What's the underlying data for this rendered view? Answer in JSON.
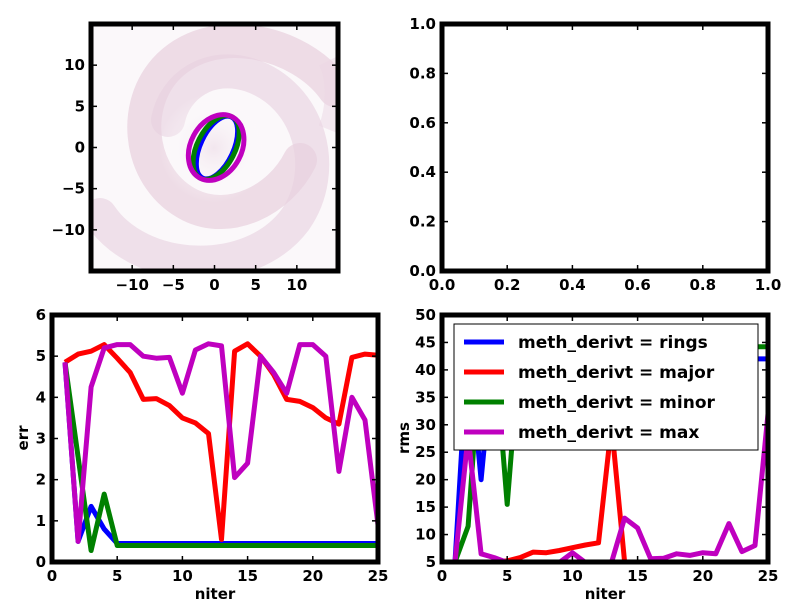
{
  "chart_data": [
    {
      "type": "image",
      "xlim": [
        -15,
        15
      ],
      "ylim": [
        -15,
        15
      ],
      "xticks": [
        -10,
        -5,
        0,
        5,
        10
      ],
      "yticks": [
        -10,
        -5,
        0,
        5,
        10
      ],
      "xtick_labels": [
        "−10",
        "−5",
        "0",
        "5",
        "10"
      ],
      "ytick_labels": [
        "−10",
        "−5",
        "0",
        "5",
        "10"
      ],
      "background": "faint pink spiral galaxy image",
      "ellipses": [
        {
          "color": "#0000ff",
          "cx": 0.3,
          "cy": 0,
          "rx": 2.0,
          "ry": 4.1,
          "angle_deg": 25
        },
        {
          "color": "#008000",
          "cx": 0.2,
          "cy": 0,
          "rx": 2.3,
          "ry": 4.2,
          "angle_deg": 27
        },
        {
          "color": "#bf00bf",
          "cx": 0.2,
          "cy": 0,
          "rx": 3.1,
          "ry": 4.2,
          "angle_deg": 28
        }
      ]
    },
    {
      "type": "line",
      "xlim": [
        0,
        1
      ],
      "ylim": [
        0,
        1
      ],
      "xticks": [
        0.0,
        0.2,
        0.4,
        0.6,
        0.8,
        1.0
      ],
      "yticks": [
        0.0,
        0.2,
        0.4,
        0.6,
        0.8,
        1.0
      ],
      "xtick_labels": [
        "0.0",
        "0.2",
        "0.4",
        "0.6",
        "0.8",
        "1.0"
      ],
      "ytick_labels": [
        "0.0",
        "0.2",
        "0.4",
        "0.6",
        "0.8",
        "1.0"
      ],
      "series": []
    },
    {
      "type": "line",
      "xlabel": "niter",
      "ylabel": "err",
      "xlim": [
        0,
        25
      ],
      "ylim": [
        0,
        6
      ],
      "xticks": [
        0,
        5,
        10,
        15,
        20,
        25
      ],
      "yticks": [
        0,
        1,
        2,
        3,
        4,
        5,
        6
      ],
      "xtick_labels": [
        "0",
        "5",
        "10",
        "15",
        "20",
        "25"
      ],
      "ytick_labels": [
        "0",
        "1",
        "2",
        "3",
        "4",
        "5",
        "6"
      ],
      "x": [
        1,
        2,
        3,
        4,
        5,
        6,
        7,
        8,
        9,
        10,
        11,
        12,
        13,
        14,
        15,
        16,
        17,
        18,
        19,
        20,
        21,
        22,
        23,
        24,
        25
      ],
      "series": [
        {
          "color": "#0000ff",
          "values": [
            4.85,
            0.5,
            1.35,
            0.8,
            0.45,
            0.45,
            0.45,
            0.45,
            0.45,
            0.45,
            0.45,
            0.45,
            0.45,
            0.45,
            0.45,
            0.45,
            0.45,
            0.45,
            0.45,
            0.45,
            0.45,
            0.45,
            0.45,
            0.45,
            0.45
          ]
        },
        {
          "color": "#ff0000",
          "values": [
            4.85,
            5.05,
            5.12,
            5.28,
            4.95,
            4.6,
            3.95,
            3.97,
            3.8,
            3.5,
            3.38,
            3.12,
            0.55,
            5.12,
            5.3,
            5.0,
            4.55,
            3.95,
            3.9,
            3.75,
            3.5,
            3.35,
            4.97,
            5.05,
            5.02
          ]
        },
        {
          "color": "#008000",
          "values": [
            4.85,
            2.55,
            0.28,
            1.65,
            0.4,
            0.4,
            0.4,
            0.4,
            0.4,
            0.4,
            0.4,
            0.4,
            0.4,
            0.4,
            0.4,
            0.4,
            0.4,
            0.4,
            0.4,
            0.4,
            0.4,
            0.4,
            0.4,
            0.4,
            0.4
          ]
        },
        {
          "color": "#bf00bf",
          "values": [
            4.85,
            0.5,
            4.25,
            5.2,
            5.28,
            5.28,
            5.0,
            4.95,
            4.97,
            4.1,
            5.15,
            5.3,
            5.25,
            2.05,
            2.4,
            5.0,
            4.6,
            4.1,
            5.28,
            5.28,
            5.0,
            2.2,
            4.0,
            3.45,
            0.9
          ]
        }
      ]
    },
    {
      "type": "line",
      "xlabel": "niter",
      "ylabel": "rms",
      "xlim": [
        0,
        25
      ],
      "ylim": [
        5,
        50
      ],
      "xticks": [
        0,
        5,
        10,
        15,
        20,
        25
      ],
      "yticks": [
        5,
        10,
        15,
        20,
        25,
        30,
        35,
        40,
        45,
        50
      ],
      "xtick_labels": [
        "0",
        "5",
        "10",
        "15",
        "20",
        "25"
      ],
      "ytick_labels": [
        "5",
        "10",
        "15",
        "20",
        "25",
        "30",
        "35",
        "40",
        "45",
        "50"
      ],
      "legend_loc": "top",
      "x": [
        1,
        2,
        3,
        4,
        5,
        6,
        7,
        8,
        9,
        10,
        11,
        12,
        13,
        14,
        15,
        16,
        17,
        18,
        19,
        20,
        21,
        22,
        23,
        24,
        25
      ],
      "series": [
        {
          "name": "meth_derivt = rings",
          "color": "#0000ff",
          "values": [
            5,
            45,
            20,
            45,
            45,
            45,
            45,
            45,
            45,
            45,
            45,
            45,
            45,
            45,
            45,
            45,
            45,
            45,
            45,
            45,
            45,
            45,
            42,
            42,
            42
          ]
        },
        {
          "name": "meth_derivt = major",
          "color": "#ff0000",
          "values": [
            5,
            5,
            5,
            5,
            5.2,
            5.8,
            6.8,
            6.7,
            7.1,
            7.6,
            8.1,
            8.5,
            30,
            5,
            5,
            5,
            5,
            5,
            5,
            5,
            5,
            5,
            5,
            5,
            5
          ]
        },
        {
          "name": "meth_derivt = minor",
          "color": "#008000",
          "values": [
            5,
            11.5,
            45,
            45,
            15.5,
            45,
            45,
            45,
            45,
            45,
            45,
            45,
            45,
            45,
            45,
            45,
            45,
            45,
            45,
            45,
            45,
            45,
            45,
            44.2,
            44.2
          ]
        },
        {
          "name": "meth_derivt = max",
          "color": "#bf00bf",
          "values": [
            5,
            28,
            6.5,
            5.8,
            4.9,
            4.9,
            4.9,
            4.9,
            4.9,
            6.7,
            4.9,
            4.9,
            4.9,
            13,
            11.2,
            5.6,
            5.7,
            6.5,
            6.2,
            6.7,
            6.5,
            12,
            6.9,
            8,
            32
          ]
        }
      ]
    }
  ]
}
